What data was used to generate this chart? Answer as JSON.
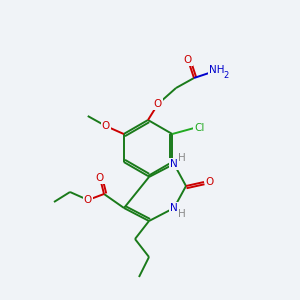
{
  "background_color": "#f0f3f7",
  "atom_colors": {
    "C": "#1a7a1a",
    "O": "#cc0000",
    "N": "#0000cc",
    "Cl": "#22aa22",
    "H": "#888888"
  },
  "bond_color": "#1a7a1a",
  "figsize": [
    3.0,
    3.0
  ],
  "dpi": 100
}
